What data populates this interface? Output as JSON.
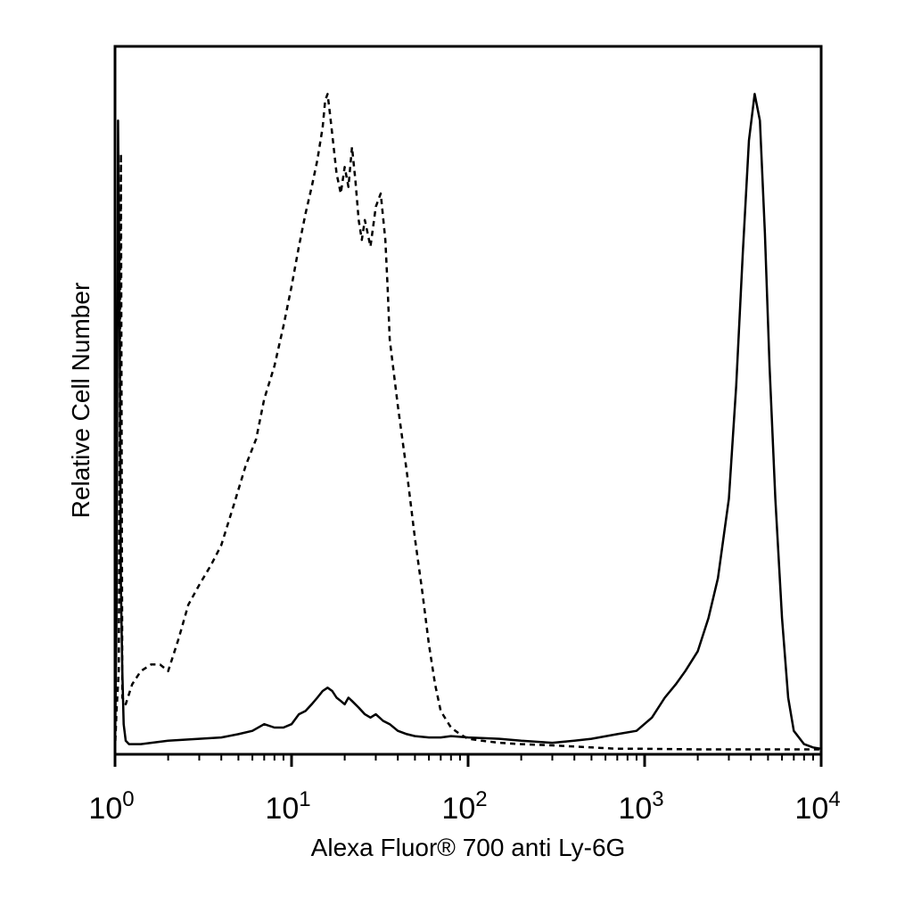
{
  "chart_data": {
    "type": "line",
    "title": "",
    "xlabel": "Alexa Fluor® 700 anti Ly-6G",
    "ylabel": "Relative Cell Number",
    "x_scale": "log",
    "xlim": [
      1,
      10000
    ],
    "ylim": [
      0,
      1
    ],
    "grid": false,
    "legend": "none",
    "x_ticks": [
      {
        "value": 1,
        "base": "10",
        "exp": "0"
      },
      {
        "value": 10,
        "base": "10",
        "exp": "1"
      },
      {
        "value": 100,
        "base": "10",
        "exp": "2"
      },
      {
        "value": 1000,
        "base": "10",
        "exp": "3"
      },
      {
        "value": 10000,
        "base": "10",
        "exp": "4"
      }
    ],
    "series": [
      {
        "style": "dashed",
        "color": "#000000",
        "x": [
          1.0,
          1.02,
          1.05,
          1.08,
          1.1,
          1.15,
          1.25,
          1.4,
          1.6,
          1.8,
          2.0,
          2.3,
          2.6,
          3.0,
          3.5,
          4.0,
          4.7,
          5.5,
          6.3,
          7.0,
          8.0,
          9.0,
          10.0,
          11.0,
          12.0,
          13.0,
          14.0,
          15.0,
          15.5,
          16.0,
          16.5,
          17.0,
          18.0,
          19.0,
          20.0,
          21.0,
          22.0,
          23.0,
          24.0,
          25.0,
          26.0,
          28.0,
          30.0,
          32.0,
          34.0,
          35.0,
          36.0,
          40.0,
          45.0,
          50.0,
          55.0,
          60.0,
          65.0,
          70.0,
          80.0,
          90.0,
          100.0,
          120.0,
          150.0,
          200.0,
          300.0,
          500.0,
          700.0,
          1000.0,
          2000.0,
          5000.0,
          10000.0
        ],
        "y": [
          0.0,
          0.06,
          0.12,
          0.9,
          0.08,
          0.07,
          0.1,
          0.12,
          0.13,
          0.13,
          0.12,
          0.17,
          0.22,
          0.25,
          0.28,
          0.31,
          0.37,
          0.43,
          0.47,
          0.53,
          0.58,
          0.64,
          0.7,
          0.76,
          0.81,
          0.85,
          0.89,
          0.94,
          0.98,
          0.99,
          0.96,
          0.93,
          0.87,
          0.84,
          0.88,
          0.85,
          0.91,
          0.86,
          0.8,
          0.77,
          0.8,
          0.76,
          0.82,
          0.84,
          0.77,
          0.7,
          0.62,
          0.52,
          0.42,
          0.32,
          0.24,
          0.16,
          0.1,
          0.06,
          0.035,
          0.025,
          0.018,
          0.015,
          0.012,
          0.01,
          0.008,
          0.005,
          0.003,
          0.003,
          0.002,
          0.002,
          0.002
        ]
      },
      {
        "style": "solid",
        "color": "#000000",
        "x": [
          1.0,
          1.02,
          1.04,
          1.06,
          1.08,
          1.1,
          1.12,
          1.15,
          1.2,
          1.4,
          2.0,
          3.0,
          4.0,
          5.0,
          6.0,
          7.0,
          8.0,
          9.0,
          10.0,
          11.0,
          12.0,
          13.0,
          14.0,
          15.0,
          16.0,
          17.0,
          18.0,
          19.0,
          20.0,
          21.0,
          22.0,
          24.0,
          26.0,
          28.0,
          30.0,
          33.0,
          36.0,
          40.0,
          45.0,
          50.0,
          60.0,
          70.0,
          80.0,
          100.0,
          150.0,
          200.0,
          300.0,
          400.0,
          500.0,
          700.0,
          900.0,
          1100.0,
          1300.0,
          1500.0,
          1700.0,
          2000.0,
          2300.0,
          2600.0,
          3000.0,
          3300.0,
          3600.0,
          3900.0,
          4200.0,
          4500.0,
          4800.0,
          5100.0,
          5500.0,
          6000.0,
          6500.0,
          7000.0,
          8000.0,
          9000.0,
          10000.0
        ],
        "y": [
          0.0,
          0.2,
          0.95,
          0.7,
          0.25,
          0.12,
          0.04,
          0.015,
          0.01,
          0.01,
          0.015,
          0.018,
          0.02,
          0.025,
          0.03,
          0.04,
          0.035,
          0.035,
          0.04,
          0.055,
          0.06,
          0.07,
          0.08,
          0.09,
          0.095,
          0.09,
          0.08,
          0.075,
          0.07,
          0.08,
          0.075,
          0.065,
          0.055,
          0.05,
          0.055,
          0.045,
          0.04,
          0.03,
          0.025,
          0.022,
          0.02,
          0.02,
          0.022,
          0.02,
          0.018,
          0.015,
          0.012,
          0.015,
          0.018,
          0.025,
          0.03,
          0.05,
          0.08,
          0.1,
          0.12,
          0.15,
          0.2,
          0.26,
          0.38,
          0.55,
          0.75,
          0.92,
          0.99,
          0.95,
          0.78,
          0.58,
          0.38,
          0.2,
          0.08,
          0.03,
          0.01,
          0.005,
          0.003
        ]
      }
    ]
  }
}
